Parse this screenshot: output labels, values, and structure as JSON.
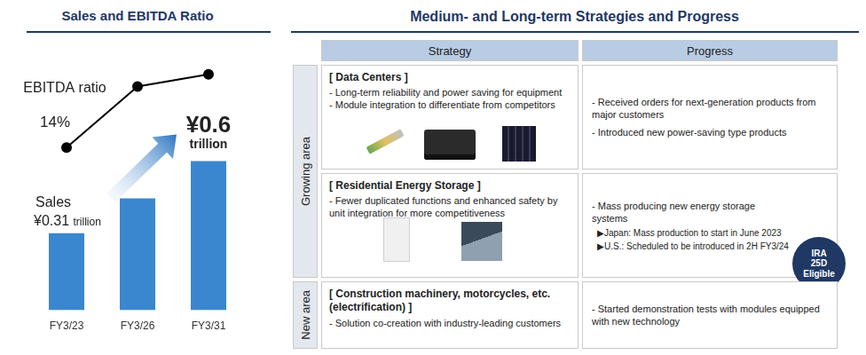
{
  "chart_data": {
    "type": "bar",
    "title": "Sales and EBITDA Ratio",
    "categories": [
      "FY3/23",
      "FY3/26",
      "FY3/31"
    ],
    "series": [
      {
        "name": "Sales",
        "type": "bar",
        "color": "#3a87cf",
        "values": [
          0.31,
          0.45,
          0.6
        ],
        "value_labels": [
          "¥0.31 trillion",
          null,
          "¥0.6 trillion"
        ]
      },
      {
        "name": "EBITDA ratio",
        "type": "line",
        "color": "#000000",
        "marker": "circle",
        "axis": "y2",
        "values": [
          14,
          17,
          17.6
        ],
        "value_labels": [
          "14%",
          null,
          null
        ]
      }
    ],
    "ylim": [
      0,
      1.08
    ],
    "y2lim": [
      6,
      19.2
    ],
    "grid": false,
    "data_labels": true,
    "tick_labels": "x"
  },
  "strategies": {
    "title": "Medium- and Long-term Strategies and Progress",
    "columns": [
      "Strategy",
      "Progress"
    ],
    "groups": [
      {
        "label": "Growing area",
        "rows": [
          {
            "heading": "[ Data Centers ]",
            "strategy": [
              "- Long-term reliability and power saving for equipment",
              "- Module integration to differentiate from competitors"
            ],
            "progress": [
              "- Received orders for next-generation products from major customers",
              "- Introduced new power-saving type products"
            ]
          },
          {
            "heading": "[ Residential Energy Storage ]",
            "strategy": [
              "- Fewer duplicated functions and enhanced safety by unit integration for more competitiveness"
            ],
            "progress": [
              "- Mass producing new energy storage systems",
              "▶Japan: Mass production to start in June 2023",
              "▶U.S.: Scheduled to be introduced in 2H FY3/24"
            ],
            "badge": [
              "IRA",
              "25D",
              "Eligible"
            ]
          }
        ]
      },
      {
        "label": "New area",
        "rows": [
          {
            "heading": "[ Construction machinery, motorcycles, etc. (electrification) ]",
            "strategy": [
              "- Solution co-creation with industry-leading customers"
            ],
            "progress": [
              "- Started demonstration tests with modules equipped with new technology"
            ]
          }
        ]
      }
    ]
  }
}
